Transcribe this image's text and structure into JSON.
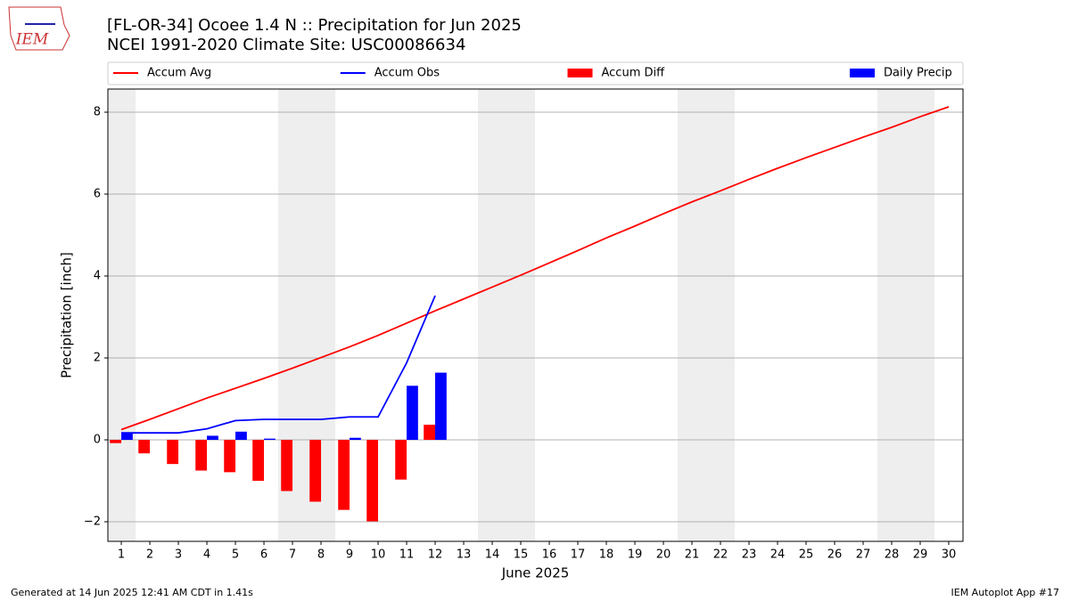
{
  "logo": "IEM",
  "footer": {
    "left": "Generated at 14 Jun 2025 12:41 AM CDT in 1.41s",
    "right": "IEM Autoplot App #17"
  },
  "chart_data": {
    "type": "combo",
    "title": "[FL-OR-34] Ocoee 1.4 N :: Precipitation for Jun 2025",
    "subtitle": "NCEI 1991-2020 Climate Site: USC00086634",
    "xlabel": "June 2025",
    "ylabel": "Precipitation [inch]",
    "x": [
      1,
      2,
      3,
      4,
      5,
      6,
      7,
      8,
      9,
      10,
      11,
      12,
      13,
      14,
      15,
      16,
      17,
      18,
      19,
      20,
      21,
      22,
      23,
      24,
      25,
      26,
      27,
      28,
      29,
      30
    ],
    "xticks": [
      1,
      2,
      3,
      4,
      5,
      6,
      7,
      8,
      9,
      10,
      11,
      12,
      13,
      14,
      15,
      16,
      17,
      18,
      19,
      20,
      21,
      22,
      23,
      24,
      25,
      26,
      27,
      28,
      29,
      30
    ],
    "xlim": [
      0.53,
      30.5
    ],
    "ylim": [
      -2.478,
      8.565
    ],
    "yticks": [
      {
        "value": -2,
        "label": "−2"
      },
      0,
      2,
      4,
      6,
      8
    ],
    "grid": true,
    "shaded_days": [
      1,
      7,
      8,
      14,
      15,
      21,
      22,
      28,
      29
    ],
    "series": [
      {
        "name": "Accum Avg",
        "kind": "line",
        "color": "#ff0000",
        "values": [
          0.25,
          0.5,
          0.76,
          1.02,
          1.26,
          1.5,
          1.75,
          2.01,
          2.27,
          2.55,
          2.85,
          3.15,
          3.44,
          3.73,
          4.02,
          4.32,
          4.62,
          4.93,
          5.22,
          5.52,
          5.81,
          6.08,
          6.36,
          6.63,
          6.89,
          7.14,
          7.39,
          7.63,
          7.89,
          8.13
        ]
      },
      {
        "name": "Accum Obs",
        "kind": "line",
        "color": "#0000ff",
        "values": [
          0.17,
          0.17,
          0.17,
          0.27,
          0.47,
          0.5,
          0.5,
          0.5,
          0.56,
          0.56,
          1.88,
          3.52,
          null,
          null,
          null,
          null,
          null,
          null,
          null,
          null,
          null,
          null,
          null,
          null,
          null,
          null,
          null,
          null,
          null,
          null
        ]
      },
      {
        "name": "Accum Diff",
        "kind": "bar",
        "color": "#ff0000",
        "values": [
          -0.08,
          -0.33,
          -0.59,
          -0.75,
          -0.79,
          -1.0,
          -1.25,
          -1.51,
          -1.71,
          -1.99,
          -0.97,
          0.37,
          null,
          null,
          null,
          null,
          null,
          null,
          null,
          null,
          null,
          null,
          null,
          null,
          null,
          null,
          null,
          null,
          null,
          null
        ]
      },
      {
        "name": "Daily Precip",
        "kind": "bar",
        "color": "#0000ff",
        "values": [
          0.17,
          0,
          0,
          0.1,
          0.2,
          0.03,
          0,
          0,
          0.05,
          0,
          1.32,
          1.64,
          null,
          null,
          null,
          null,
          null,
          null,
          null,
          null,
          null,
          null,
          null,
          null,
          null,
          null,
          null,
          null,
          null,
          null
        ]
      }
    ]
  }
}
